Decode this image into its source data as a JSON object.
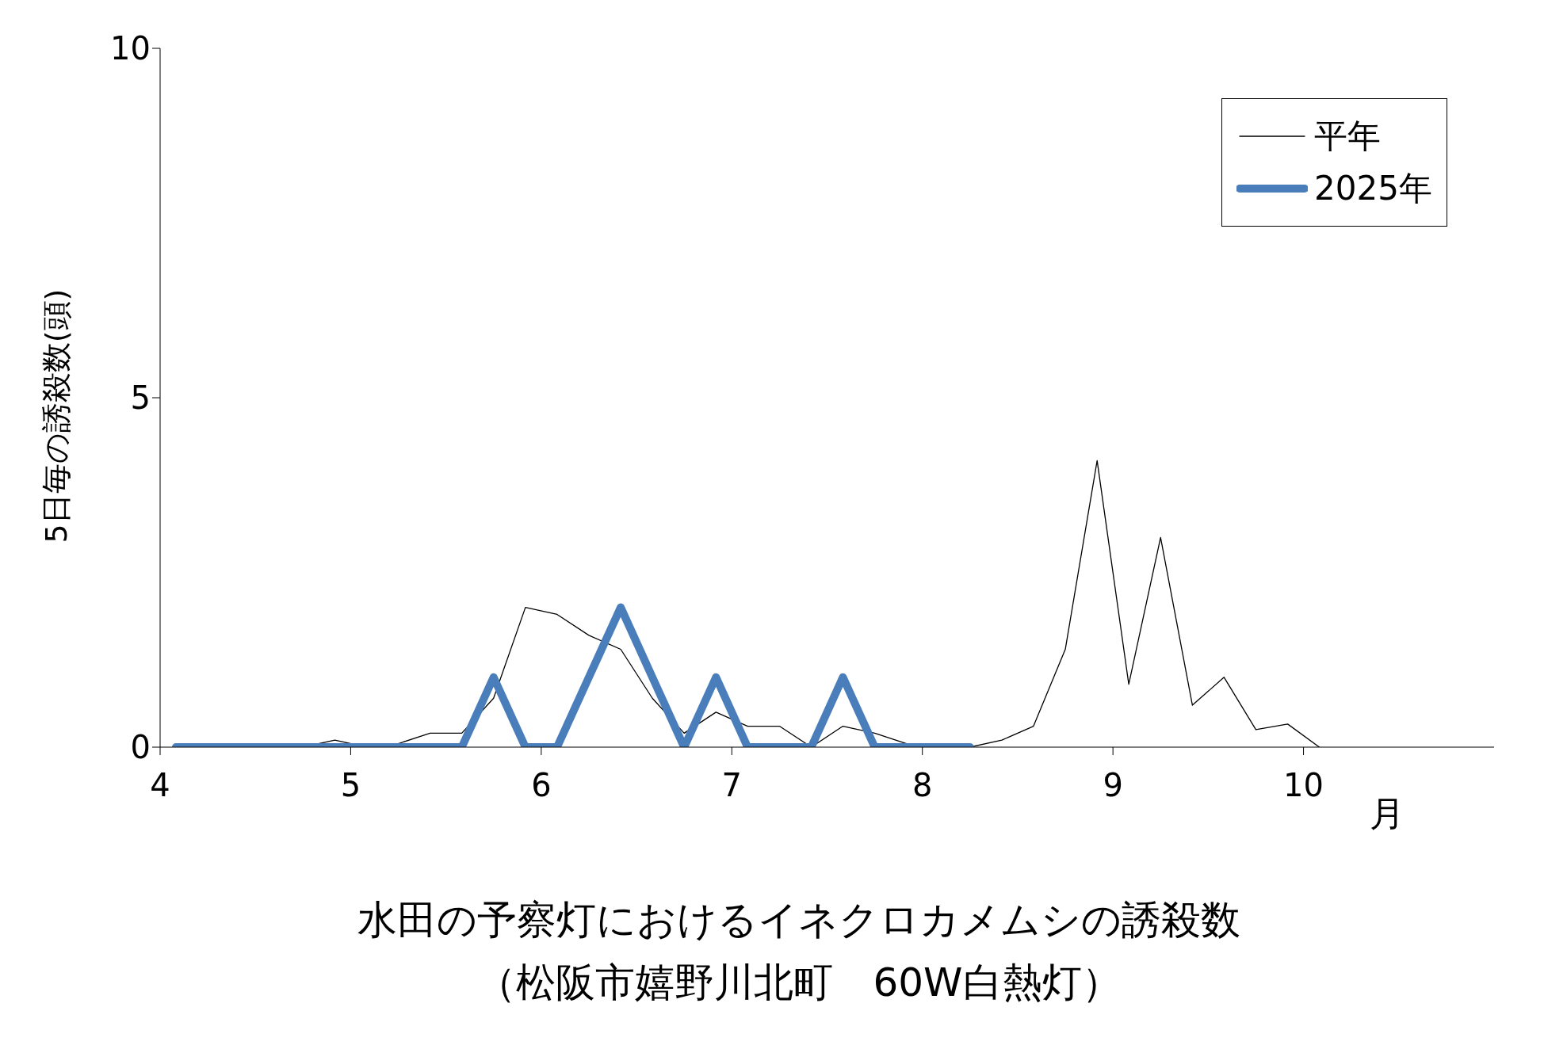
{
  "chart_data": {
    "type": "line",
    "title": "水田の予察灯におけるイネクロカメムシの誘殺数",
    "subtitle": "（松阪市嬉野川北町　60W白熱灯）",
    "xlabel": "月",
    "ylabel": "5日毎の誘殺数(頭)",
    "x": [
      4.083,
      4.25,
      4.417,
      4.583,
      4.75,
      4.917,
      5.083,
      5.25,
      5.417,
      5.583,
      5.75,
      5.917,
      6.083,
      6.25,
      6.417,
      6.583,
      6.75,
      6.917,
      7.083,
      7.25,
      7.417,
      7.583,
      7.75,
      7.917,
      8.083,
      8.25,
      8.417,
      8.583,
      8.75,
      8.917,
      9.083,
      9.25,
      9.417,
      9.583,
      9.75,
      9.917,
      10.083
    ],
    "series": [
      {
        "name": "平年",
        "color": "#000000",
        "values": [
          0,
          0,
          0,
          0,
          0,
          0.1,
          0,
          0.05,
          0.2,
          0.2,
          0.7,
          2,
          1.9,
          1.6,
          1.4,
          0.7,
          0.2,
          0.5,
          0.3,
          0.3,
          0,
          0.3,
          0.2,
          0.05,
          0,
          0,
          0.1,
          0.3,
          1.4,
          4.1,
          0.9,
          3,
          0.6,
          1,
          0.25,
          0.33,
          0
        ]
      },
      {
        "name": "2025年",
        "color": "#4a7ebb",
        "values": [
          0,
          0,
          0,
          0,
          0,
          0,
          0,
          0,
          0,
          0,
          1,
          0,
          0,
          1,
          2,
          1,
          0,
          1,
          0,
          0,
          0,
          1,
          0,
          0,
          0,
          0,
          null,
          null,
          null,
          null,
          null,
          null,
          null,
          null,
          null,
          null,
          null
        ]
      }
    ],
    "xlim": [
      4,
      11
    ],
    "xticks": [
      4,
      5,
      6,
      7,
      8,
      9,
      10
    ],
    "ylim": [
      0,
      10
    ],
    "yticks": [
      0,
      5,
      10
    ],
    "grid": false,
    "legend": "top right",
    "marker": "none"
  }
}
